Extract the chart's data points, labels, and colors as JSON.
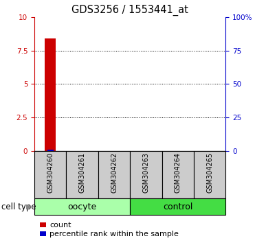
{
  "title": "GDS3256 / 1553441_at",
  "samples": [
    "GSM304260",
    "GSM304261",
    "GSM304262",
    "GSM304263",
    "GSM304264",
    "GSM304265"
  ],
  "count_values": [
    8.4,
    0,
    0,
    0,
    0,
    0
  ],
  "percentile_values": [
    0.9,
    0,
    0,
    0,
    0,
    0
  ],
  "ylim_left": [
    0,
    10
  ],
  "ylim_right": [
    0,
    100
  ],
  "yticks_left": [
    0,
    2.5,
    5,
    7.5,
    10
  ],
  "yticks_right": [
    0,
    25,
    50,
    75,
    100
  ],
  "ytick_labels_left": [
    "0",
    "2.5",
    "5",
    "7.5",
    "10"
  ],
  "ytick_labels_right": [
    "0",
    "25",
    "50",
    "75",
    "100%"
  ],
  "left_axis_color": "#cc0000",
  "right_axis_color": "#0000cc",
  "grid_color": "#000000",
  "bar_width": 0.35,
  "count_color": "#cc0000",
  "percentile_color": "#0000cc",
  "groups": [
    {
      "label": "oocyte",
      "indices": [
        0,
        1,
        2
      ],
      "color": "#aaffaa"
    },
    {
      "label": "control",
      "indices": [
        3,
        4,
        5
      ],
      "color": "#44dd44"
    }
  ],
  "cell_type_label": "cell type",
  "legend_count_label": "count",
  "legend_percentile_label": "percentile rank within the sample",
  "bg_color": "#ffffff",
  "sample_box_color": "#cccccc",
  "title_fontsize": 10.5,
  "tick_fontsize": 7.5,
  "label_fontsize": 8.5,
  "sample_fontsize": 7.0,
  "group_fontsize": 9.0
}
